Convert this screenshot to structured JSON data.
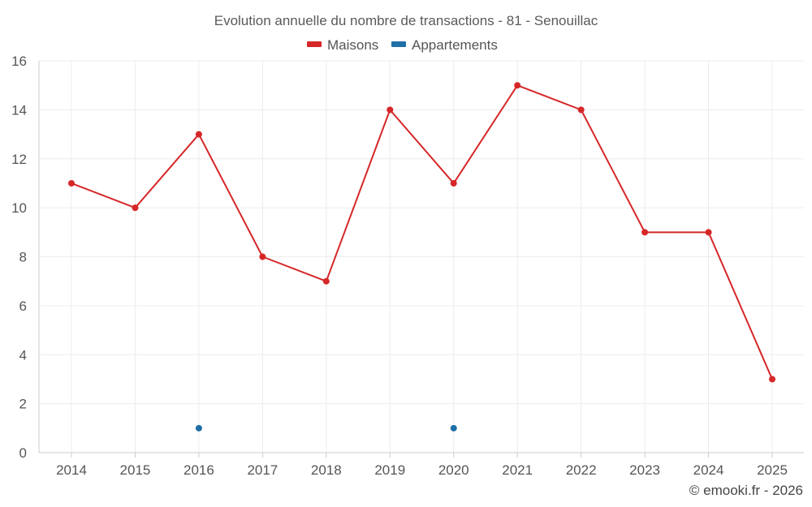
{
  "chart_data": {
    "type": "line",
    "title": "Evolution annuelle du nombre de transactions - 81 - Senouillac",
    "categories": [
      "2014",
      "2015",
      "2016",
      "2017",
      "2018",
      "2019",
      "2020",
      "2021",
      "2022",
      "2023",
      "2024",
      "2025"
    ],
    "series": [
      {
        "name": "Maisons",
        "color": "#d62728",
        "values": [
          11,
          10,
          13,
          8,
          7,
          14,
          11,
          15,
          14,
          9,
          9,
          3
        ]
      },
      {
        "name": "Appartements",
        "color": "#1f6fa8",
        "values": [
          null,
          null,
          1,
          null,
          null,
          null,
          1,
          null,
          null,
          null,
          null,
          null
        ]
      }
    ],
    "ylim": [
      0,
      16
    ],
    "yticks": [
      0,
      2,
      4,
      6,
      8,
      10,
      12,
      14,
      16
    ],
    "xlabel": "",
    "ylabel": "",
    "grid": true,
    "legend_position": "top-center"
  },
  "credit": "© emooki.fr - 2026"
}
